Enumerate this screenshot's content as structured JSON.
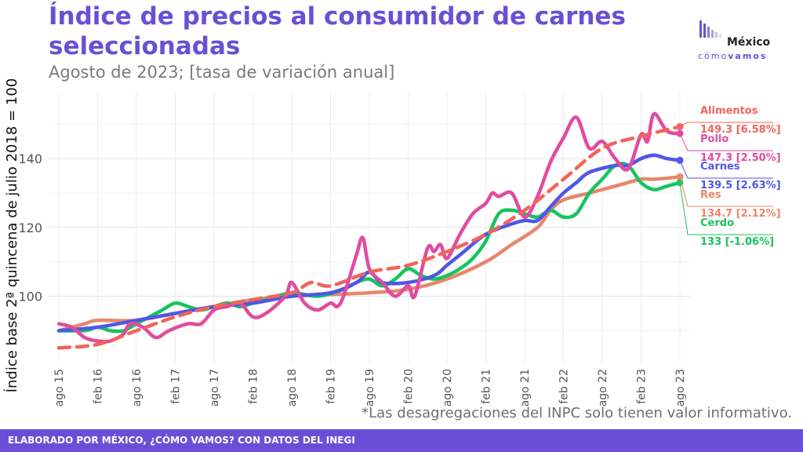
{
  "title": "Índice de precios al consumidor de carnes seleccionadas",
  "subtitle": "Agosto de 2023; [tasa de variación anual]",
  "logo": {
    "name": "México",
    "tag_light": "cómo",
    "tag_bold": "vamos"
  },
  "note": "*Las desagregaciones del INPC solo tienen valor informativo.",
  "footer": "ELABORADO POR MÉXICO, ¿CÓMO VAMOS? CON DATOS DEL INEGI",
  "colors": {
    "brand": "#6a4fd6"
  },
  "chart_data": {
    "type": "line",
    "ylabel": "Índice base 2ª quincena de julio 2018 = 100",
    "xlabel": "",
    "ylim": [
      82,
      156
    ],
    "yticks": [
      100,
      120,
      140
    ],
    "grid": true,
    "x_tick_labels": [
      "ago 15",
      "feb 16",
      "ago 16",
      "feb 17",
      "ago 17",
      "feb 18",
      "ago 18",
      "feb 19",
      "ago 19",
      "feb 20",
      "ago 20",
      "feb 21",
      "ago 21",
      "feb 22",
      "ago 22",
      "feb 23",
      "ago 23"
    ],
    "x_start": "2015-08",
    "x_end": "2023-08",
    "series": [
      {
        "name": "Alimentos",
        "label_value": "149.3 [6.58%]",
        "color": "#f2645a",
        "dash": true,
        "knots": [
          [
            0,
            85
          ],
          [
            6,
            86
          ],
          [
            12,
            90
          ],
          [
            18,
            94
          ],
          [
            24,
            97
          ],
          [
            30,
            99
          ],
          [
            36,
            101
          ],
          [
            39,
            104
          ],
          [
            42,
            103
          ],
          [
            48,
            107
          ],
          [
            54,
            109
          ],
          [
            60,
            113
          ],
          [
            66,
            118
          ],
          [
            72,
            125
          ],
          [
            78,
            134
          ],
          [
            84,
            143
          ],
          [
            90,
            146.5
          ],
          [
            96,
            149.3
          ]
        ]
      },
      {
        "name": "Pollo",
        "label_value": "147.3 [2.50%]",
        "color": "#e14ba0",
        "dash": false,
        "knots": [
          [
            0,
            92
          ],
          [
            2,
            91
          ],
          [
            4,
            88
          ],
          [
            6,
            87
          ],
          [
            8,
            87
          ],
          [
            10,
            89
          ],
          [
            11,
            92
          ],
          [
            13,
            91
          ],
          [
            15,
            88
          ],
          [
            17,
            90
          ],
          [
            20,
            92
          ],
          [
            22,
            92
          ],
          [
            24,
            96
          ],
          [
            26,
            97
          ],
          [
            28,
            98
          ],
          [
            30,
            94
          ],
          [
            32,
            95
          ],
          [
            35,
            100
          ],
          [
            36,
            104
          ],
          [
            38,
            98
          ],
          [
            40,
            96
          ],
          [
            42,
            98
          ],
          [
            43,
            97
          ],
          [
            44,
            100
          ],
          [
            46,
            112
          ],
          [
            47,
            117
          ],
          [
            48,
            108
          ],
          [
            50,
            104
          ],
          [
            52,
            100
          ],
          [
            54,
            103
          ],
          [
            55,
            100
          ],
          [
            57,
            114
          ],
          [
            58,
            113
          ],
          [
            59,
            115
          ],
          [
            60,
            111
          ],
          [
            62,
            118
          ],
          [
            64,
            124
          ],
          [
            66,
            127
          ],
          [
            67,
            130
          ],
          [
            68,
            129
          ],
          [
            70,
            130
          ],
          [
            72,
            123
          ],
          [
            74,
            129
          ],
          [
            76,
            139
          ],
          [
            78,
            146
          ],
          [
            80,
            152
          ],
          [
            82,
            143
          ],
          [
            84,
            145
          ],
          [
            86,
            140
          ],
          [
            88,
            137
          ],
          [
            90,
            147
          ],
          [
            91,
            145
          ],
          [
            92,
            153
          ],
          [
            94,
            148
          ],
          [
            96,
            147.3
          ]
        ]
      },
      {
        "name": "Carnes",
        "label_value": "139.5 [2.63%]",
        "color": "#4f57e6",
        "dash": false,
        "knots": [
          [
            0,
            90
          ],
          [
            6,
            91
          ],
          [
            12,
            93
          ],
          [
            18,
            95
          ],
          [
            24,
            97
          ],
          [
            30,
            98
          ],
          [
            36,
            100
          ],
          [
            42,
            101
          ],
          [
            46,
            104
          ],
          [
            48,
            107
          ],
          [
            50,
            104
          ],
          [
            54,
            104
          ],
          [
            58,
            106
          ],
          [
            60,
            109
          ],
          [
            62,
            112
          ],
          [
            66,
            118
          ],
          [
            70,
            121
          ],
          [
            72,
            122
          ],
          [
            74,
            122
          ],
          [
            76,
            126
          ],
          [
            78,
            130
          ],
          [
            80,
            133
          ],
          [
            82,
            136
          ],
          [
            86,
            138
          ],
          [
            88,
            138
          ],
          [
            90,
            140
          ],
          [
            92,
            141
          ],
          [
            94,
            140
          ],
          [
            96,
            139.5
          ]
        ]
      },
      {
        "name": "Res",
        "label_value": "134.7 [2.12%]",
        "color": "#e8876a",
        "dash": false,
        "knots": [
          [
            0,
            90
          ],
          [
            4,
            92
          ],
          [
            6,
            93
          ],
          [
            12,
            93
          ],
          [
            18,
            95
          ],
          [
            24,
            97
          ],
          [
            30,
            99
          ],
          [
            36,
            100
          ],
          [
            42,
            100.5
          ],
          [
            48,
            101
          ],
          [
            54,
            102
          ],
          [
            60,
            105
          ],
          [
            66,
            110
          ],
          [
            70,
            115
          ],
          [
            74,
            120
          ],
          [
            76,
            125
          ],
          [
            78,
            128
          ],
          [
            82,
            130
          ],
          [
            86,
            132
          ],
          [
            90,
            134
          ],
          [
            92,
            134
          ],
          [
            96,
            134.7
          ]
        ]
      },
      {
        "name": "Cerdo",
        "label_value": "133 [-1.06%]",
        "color": "#17c45f",
        "dash": false,
        "knots": [
          [
            0,
            90
          ],
          [
            4,
            90
          ],
          [
            6,
            91
          ],
          [
            8,
            90
          ],
          [
            10,
            90
          ],
          [
            12,
            92
          ],
          [
            14,
            94
          ],
          [
            16,
            96
          ],
          [
            18,
            98
          ],
          [
            20,
            97
          ],
          [
            22,
            96
          ],
          [
            24,
            97
          ],
          [
            26,
            98
          ],
          [
            28,
            97
          ],
          [
            30,
            98
          ],
          [
            32,
            99
          ],
          [
            36,
            101
          ],
          [
            40,
            100
          ],
          [
            44,
            102
          ],
          [
            46,
            104
          ],
          [
            48,
            105
          ],
          [
            50,
            103
          ],
          [
            52,
            105
          ],
          [
            54,
            108
          ],
          [
            56,
            106
          ],
          [
            58,
            105
          ],
          [
            60,
            106
          ],
          [
            62,
            108
          ],
          [
            64,
            111
          ],
          [
            66,
            116
          ],
          [
            68,
            124
          ],
          [
            70,
            125
          ],
          [
            72,
            124
          ],
          [
            74,
            123
          ],
          [
            76,
            125
          ],
          [
            78,
            123
          ],
          [
            80,
            124
          ],
          [
            82,
            130
          ],
          [
            84,
            134
          ],
          [
            86,
            138
          ],
          [
            88,
            138
          ],
          [
            90,
            133
          ],
          [
            92,
            131
          ],
          [
            94,
            132
          ],
          [
            96,
            133
          ]
        ]
      }
    ]
  }
}
